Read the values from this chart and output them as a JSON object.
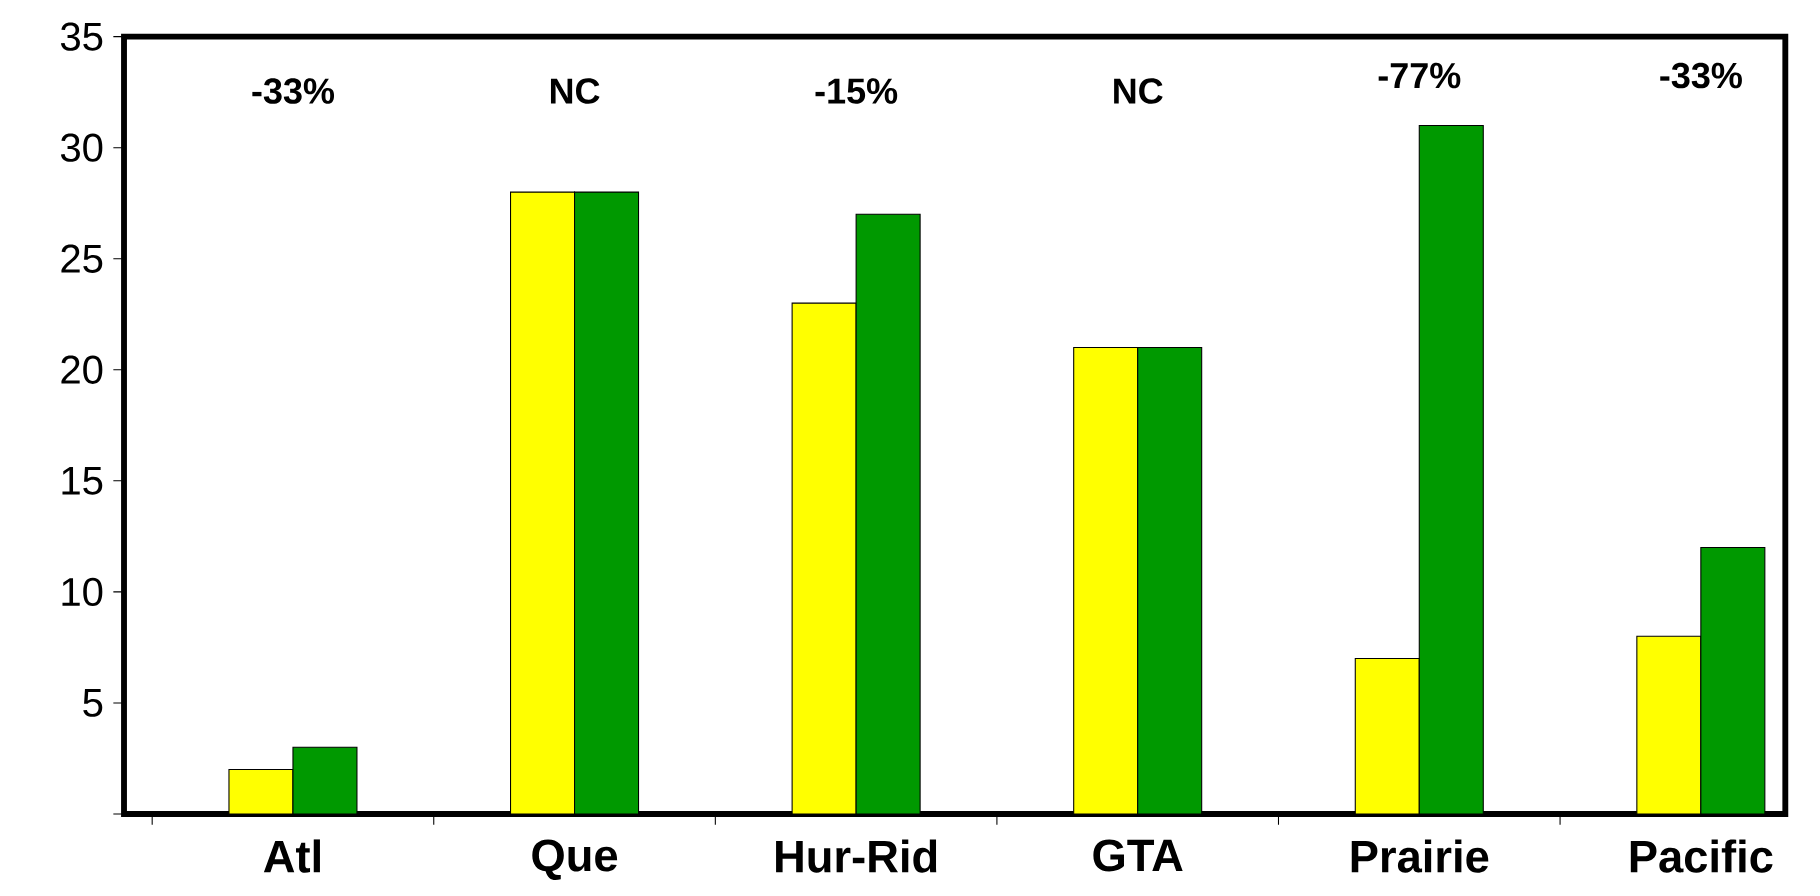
{
  "chart_data": {
    "type": "bar",
    "categories": [
      "Atl",
      "Que",
      "Hur-Rid",
      "GTA",
      "Prairie",
      "Pacific"
    ],
    "series": [
      {
        "color": "#ffff00",
        "values": [
          2,
          28,
          23,
          21,
          7,
          8
        ]
      },
      {
        "color": "#009900",
        "values": [
          3,
          28,
          27,
          21,
          31,
          12
        ]
      }
    ],
    "ylim": [
      0,
      35
    ],
    "yticks": [
      {
        "value": 0,
        "label": null
      },
      5,
      10,
      15,
      20,
      25,
      30,
      35
    ],
    "annotations": [
      "-33%",
      "NC",
      "-15%",
      "NC",
      "-77%",
      "-33%"
    ]
  }
}
